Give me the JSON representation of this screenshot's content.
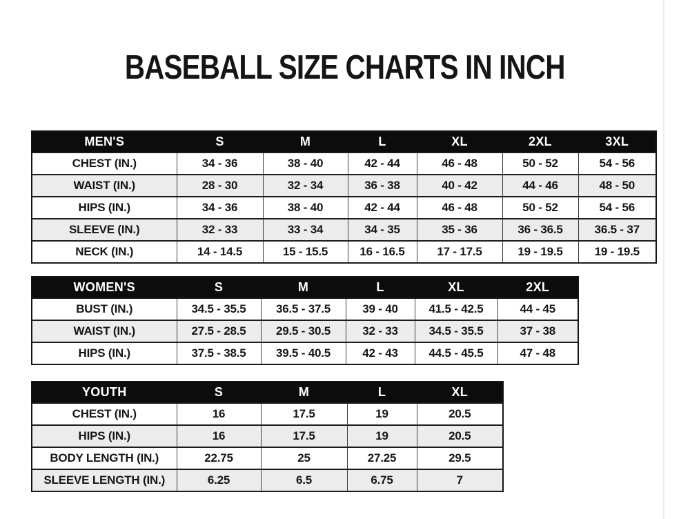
{
  "page": {
    "title": "BASEBALL SIZE CHARTS IN INCH"
  },
  "colors": {
    "header_bg": "#0c0c0c",
    "header_text": "#ffffff",
    "row_bg": "#ffffff",
    "row_alt_bg": "#ececec",
    "border": "#141414",
    "text": "#161616"
  },
  "tables": [
    {
      "name": "mens",
      "header": [
        "MEN'S",
        "S",
        "M",
        "L",
        "XL",
        "2XL",
        "3XL"
      ],
      "rows": [
        [
          "CHEST (IN.)",
          "34 - 36",
          "38 - 40",
          "42 - 44",
          "46 - 48",
          "50 - 52",
          "54 - 56"
        ],
        [
          "WAIST (IN.)",
          "28 - 30",
          "32 - 34",
          "36 - 38",
          "40 - 42",
          "44 - 46",
          "48 - 50"
        ],
        [
          "HIPS (IN.)",
          "34 - 36",
          "38 - 40",
          "42 - 44",
          "46 - 48",
          "50 - 52",
          "54 - 56"
        ],
        [
          "SLEEVE (IN.)",
          "32 - 33",
          "33 - 34",
          "34 - 35",
          "35 - 36",
          "36 - 36.5",
          "36.5 - 37"
        ],
        [
          "NECK (IN.)",
          "14 - 14.5",
          "15 - 15.5",
          "16 - 16.5",
          "17 - 17.5",
          "19 - 19.5",
          "19 - 19.5"
        ]
      ]
    },
    {
      "name": "womens",
      "header": [
        "WOMEN'S",
        "S",
        "M",
        "L",
        "XL",
        "2XL"
      ],
      "rows": [
        [
          "BUST (IN.)",
          "34.5 - 35.5",
          "36.5 - 37.5",
          "39 - 40",
          "41.5 - 42.5",
          "44 - 45"
        ],
        [
          "WAIST (IN.)",
          "27.5 - 28.5",
          "29.5 - 30.5",
          "32 - 33",
          "34.5 - 35.5",
          "37 - 38"
        ],
        [
          "HIPS (IN.)",
          "37.5 - 38.5",
          "39.5 - 40.5",
          "42 - 43",
          "44.5 - 45.5",
          "47 - 48"
        ]
      ]
    },
    {
      "name": "youth",
      "header": [
        "YOUTH",
        "S",
        "M",
        "L",
        "XL"
      ],
      "rows": [
        [
          "CHEST (IN.)",
          "16",
          "17.5",
          "19",
          "20.5"
        ],
        [
          "HIPS (IN.)",
          "16",
          "17.5",
          "19",
          "20.5"
        ],
        [
          "BODY LENGTH (IN.)",
          "22.75",
          "25",
          "27.25",
          "29.5"
        ],
        [
          "SLEEVE LENGTH (IN.)",
          "6.25",
          "6.5",
          "6.75",
          "7"
        ]
      ]
    }
  ]
}
